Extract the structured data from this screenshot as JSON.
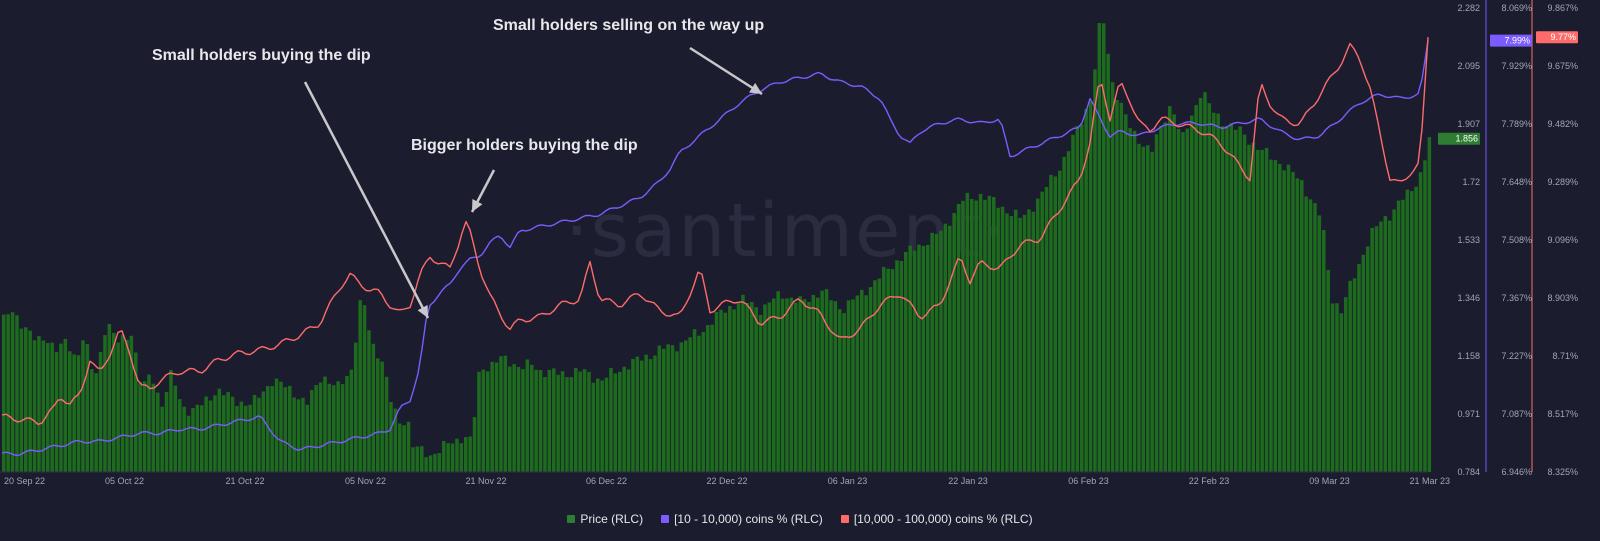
{
  "chart_data": {
    "type": "line",
    "watermark": "·santiment·",
    "annotations": [
      {
        "text": "Small holders buying the dip"
      },
      {
        "text": "Bigger holders buying the dip"
      },
      {
        "text": "Small holders selling on the way up"
      }
    ],
    "x_ticks": [
      "20 Sep 22",
      "05 Oct 22",
      "21 Oct 22",
      "05 Nov 22",
      "21 Nov 22",
      "06 Dec 22",
      "22 Dec 22",
      "06 Jan 23",
      "22 Jan 23",
      "06 Feb 23",
      "22 Feb 23",
      "09 Mar 23",
      "21 Mar 23"
    ],
    "axes": {
      "price": {
        "ticks": [
          "2.282",
          "2.095",
          "1.907",
          "1.72",
          "1.533",
          "1.346",
          "1.158",
          "0.971",
          "0.784"
        ],
        "range": [
          0.784,
          2.282
        ],
        "current_label": "1.856",
        "color": "#2f7d32"
      },
      "small": {
        "ticks": [
          "8.069%",
          "7.929%",
          "7.789%",
          "7.648%",
          "7.508%",
          "7.367%",
          "7.227%",
          "7.087%",
          "6.946%"
        ],
        "range": [
          6.946,
          8.069
        ],
        "current_label": "7.99%",
        "color": "#7a5cff"
      },
      "big": {
        "ticks": [
          "9.867%",
          "9.675%",
          "9.482%",
          "9.289%",
          "9.096%",
          "8.903%",
          "8.71%",
          "8.517%",
          "8.325%"
        ],
        "range": [
          8.325,
          9.867
        ],
        "current_label": "9.77%",
        "color": "#ff6b6b"
      }
    },
    "series": [
      {
        "name": "Price (RLC)",
        "color": "#1d6b1d",
        "anchors": [
          [
            0,
            1.27
          ],
          [
            10,
            1.3
          ],
          [
            25,
            1.25
          ],
          [
            35,
            1.2
          ],
          [
            45,
            1.22
          ],
          [
            55,
            1.18
          ],
          [
            65,
            1.2
          ],
          [
            75,
            1.15
          ],
          [
            83,
            1.24
          ],
          [
            88,
            1.12
          ],
          [
            95,
            1.1
          ],
          [
            105,
            1.28
          ],
          [
            115,
            1.2
          ],
          [
            125,
            1.22
          ],
          [
            130,
            1.24
          ],
          [
            140,
            1.05
          ],
          [
            150,
            1.1
          ],
          [
            160,
            1.0
          ],
          [
            170,
            1.1
          ],
          [
            180,
            1.0
          ],
          [
            190,
            0.98
          ],
          [
            200,
            1.0
          ],
          [
            215,
            1.05
          ],
          [
            230,
            1.02
          ],
          [
            250,
            1.0
          ],
          [
            270,
            1.08
          ],
          [
            290,
            1.05
          ],
          [
            305,
            1.0
          ],
          [
            320,
            1.1
          ],
          [
            335,
            1.05
          ],
          [
            350,
            1.12
          ],
          [
            360,
            1.36
          ],
          [
            370,
            1.2
          ],
          [
            380,
            1.15
          ],
          [
            390,
            1.0
          ],
          [
            400,
            0.93
          ],
          [
            405,
            0.98
          ],
          [
            410,
            0.87
          ],
          [
            420,
            0.85
          ],
          [
            430,
            0.84
          ],
          [
            440,
            0.86
          ],
          [
            450,
            0.88
          ],
          [
            462,
            0.9
          ],
          [
            470,
            0.88
          ],
          [
            478,
            1.12
          ],
          [
            490,
            1.13
          ],
          [
            500,
            1.15
          ],
          [
            510,
            1.14
          ],
          [
            520,
            1.12
          ],
          [
            530,
            1.13
          ],
          [
            540,
            1.11
          ],
          [
            560,
            1.1
          ],
          [
            580,
            1.11
          ],
          [
            600,
            1.08
          ],
          [
            620,
            1.12
          ],
          [
            640,
            1.15
          ],
          [
            660,
            1.18
          ],
          [
            680,
            1.2
          ],
          [
            700,
            1.24
          ],
          [
            720,
            1.3
          ],
          [
            740,
            1.34
          ],
          [
            760,
            1.31
          ],
          [
            780,
            1.36
          ],
          [
            800,
            1.33
          ],
          [
            820,
            1.37
          ],
          [
            840,
            1.31
          ],
          [
            860,
            1.36
          ],
          [
            880,
            1.42
          ],
          [
            900,
            1.48
          ],
          [
            920,
            1.52
          ],
          [
            940,
            1.56
          ],
          [
            960,
            1.66
          ],
          [
            980,
            1.68
          ],
          [
            1000,
            1.64
          ],
          [
            1020,
            1.6
          ],
          [
            1040,
            1.68
          ],
          [
            1060,
            1.78
          ],
          [
            1080,
            1.92
          ],
          [
            1090,
            2.0
          ],
          [
            1100,
            2.28
          ],
          [
            1110,
            2.05
          ],
          [
            1130,
            1.88
          ],
          [
            1150,
            1.82
          ],
          [
            1170,
            1.98
          ],
          [
            1180,
            1.85
          ],
          [
            1200,
            2.02
          ],
          [
            1210,
            1.95
          ],
          [
            1220,
            1.92
          ],
          [
            1240,
            1.88
          ],
          [
            1260,
            1.82
          ],
          [
            1280,
            1.78
          ],
          [
            1300,
            1.72
          ],
          [
            1320,
            1.6
          ],
          [
            1330,
            1.35
          ],
          [
            1340,
            1.3
          ],
          [
            1350,
            1.4
          ],
          [
            1360,
            1.48
          ],
          [
            1370,
            1.55
          ],
          [
            1380,
            1.6
          ],
          [
            1390,
            1.62
          ],
          [
            1400,
            1.66
          ],
          [
            1410,
            1.7
          ],
          [
            1420,
            1.75
          ],
          [
            1428,
            1.86
          ]
        ]
      },
      {
        "name": "[10 - 10,000) coins % (RLC)",
        "color": "#7a5cff",
        "anchors": [
          [
            0,
            6.99
          ],
          [
            20,
            6.99
          ],
          [
            40,
            7.0
          ],
          [
            60,
            7.01
          ],
          [
            80,
            7.02
          ],
          [
            100,
            7.02
          ],
          [
            120,
            7.03
          ],
          [
            140,
            7.04
          ],
          [
            160,
            7.04
          ],
          [
            180,
            7.05
          ],
          [
            200,
            7.05
          ],
          [
            220,
            7.06
          ],
          [
            240,
            7.07
          ],
          [
            260,
            7.08
          ],
          [
            270,
            7.05
          ],
          [
            280,
            7.02
          ],
          [
            300,
            7.0
          ],
          [
            320,
            7.01
          ],
          [
            340,
            7.02
          ],
          [
            360,
            7.03
          ],
          [
            380,
            7.04
          ],
          [
            390,
            7.05
          ],
          [
            400,
            7.1
          ],
          [
            410,
            7.12
          ],
          [
            420,
            7.2
          ],
          [
            425,
            7.3
          ],
          [
            430,
            7.35
          ],
          [
            440,
            7.38
          ],
          [
            450,
            7.4
          ],
          [
            460,
            7.44
          ],
          [
            470,
            7.46
          ],
          [
            480,
            7.47
          ],
          [
            490,
            7.5
          ],
          [
            500,
            7.52
          ],
          [
            510,
            7.49
          ],
          [
            520,
            7.53
          ],
          [
            540,
            7.54
          ],
          [
            560,
            7.55
          ],
          [
            580,
            7.56
          ],
          [
            600,
            7.57
          ],
          [
            620,
            7.59
          ],
          [
            640,
            7.61
          ],
          [
            660,
            7.65
          ],
          [
            670,
            7.68
          ],
          [
            680,
            7.72
          ],
          [
            700,
            7.76
          ],
          [
            720,
            7.8
          ],
          [
            740,
            7.84
          ],
          [
            760,
            7.87
          ],
          [
            780,
            7.89
          ],
          [
            800,
            7.9
          ],
          [
            820,
            7.91
          ],
          [
            840,
            7.89
          ],
          [
            860,
            7.88
          ],
          [
            880,
            7.85
          ],
          [
            890,
            7.8
          ],
          [
            900,
            7.76
          ],
          [
            910,
            7.74
          ],
          [
            920,
            7.77
          ],
          [
            940,
            7.79
          ],
          [
            960,
            7.8
          ],
          [
            980,
            7.79
          ],
          [
            1000,
            7.8
          ],
          [
            1010,
            7.71
          ],
          [
            1020,
            7.72
          ],
          [
            1040,
            7.74
          ],
          [
            1060,
            7.76
          ],
          [
            1080,
            7.78
          ],
          [
            1090,
            7.85
          ],
          [
            1100,
            7.8
          ],
          [
            1110,
            7.76
          ],
          [
            1120,
            7.77
          ],
          [
            1140,
            7.76
          ],
          [
            1160,
            7.78
          ],
          [
            1180,
            7.79
          ],
          [
            1200,
            7.79
          ],
          [
            1220,
            7.78
          ],
          [
            1240,
            7.79
          ],
          [
            1260,
            7.8
          ],
          [
            1280,
            7.77
          ],
          [
            1300,
            7.75
          ],
          [
            1320,
            7.76
          ],
          [
            1340,
            7.8
          ],
          [
            1360,
            7.84
          ],
          [
            1380,
            7.86
          ],
          [
            1400,
            7.85
          ],
          [
            1420,
            7.86
          ],
          [
            1428,
            7.99
          ]
        ]
      },
      {
        "name": "[10,000 - 100,000) coins % (RLC)",
        "color": "#ff6b6b",
        "anchors": [
          [
            0,
            8.51
          ],
          [
            20,
            8.5
          ],
          [
            40,
            8.49
          ],
          [
            55,
            8.54
          ],
          [
            60,
            8.58
          ],
          [
            70,
            8.55
          ],
          [
            80,
            8.58
          ],
          [
            90,
            8.7
          ],
          [
            100,
            8.65
          ],
          [
            110,
            8.72
          ],
          [
            120,
            8.8
          ],
          [
            130,
            8.72
          ],
          [
            140,
            8.61
          ],
          [
            150,
            8.6
          ],
          [
            160,
            8.63
          ],
          [
            180,
            8.66
          ],
          [
            200,
            8.66
          ],
          [
            220,
            8.7
          ],
          [
            240,
            8.72
          ],
          [
            260,
            8.73
          ],
          [
            280,
            8.75
          ],
          [
            300,
            8.78
          ],
          [
            320,
            8.82
          ],
          [
            330,
            8.88
          ],
          [
            340,
            8.94
          ],
          [
            350,
            8.98
          ],
          [
            360,
            8.95
          ],
          [
            370,
            8.93
          ],
          [
            380,
            8.92
          ],
          [
            390,
            8.88
          ],
          [
            400,
            8.85
          ],
          [
            410,
            8.88
          ],
          [
            420,
            8.98
          ],
          [
            430,
            9.04
          ],
          [
            440,
            9.02
          ],
          [
            450,
            9.0
          ],
          [
            460,
            9.1
          ],
          [
            465,
            9.16
          ],
          [
            470,
            9.12
          ],
          [
            480,
            9.0
          ],
          [
            490,
            8.91
          ],
          [
            500,
            8.85
          ],
          [
            510,
            8.8
          ],
          [
            520,
            8.83
          ],
          [
            540,
            8.84
          ],
          [
            560,
            8.88
          ],
          [
            580,
            8.9
          ],
          [
            590,
            9.02
          ],
          [
            600,
            8.9
          ],
          [
            620,
            8.88
          ],
          [
            640,
            8.92
          ],
          [
            660,
            8.86
          ],
          [
            680,
            8.84
          ],
          [
            700,
            9.0
          ],
          [
            710,
            8.86
          ],
          [
            720,
            8.88
          ],
          [
            740,
            8.9
          ],
          [
            760,
            8.82
          ],
          [
            780,
            8.84
          ],
          [
            800,
            8.9
          ],
          [
            820,
            8.85
          ],
          [
            840,
            8.76
          ],
          [
            860,
            8.8
          ],
          [
            880,
            8.88
          ],
          [
            900,
            8.92
          ],
          [
            920,
            8.84
          ],
          [
            940,
            8.88
          ],
          [
            960,
            9.04
          ],
          [
            970,
            8.96
          ],
          [
            980,
            9.02
          ],
          [
            1000,
            9.0
          ],
          [
            1020,
            9.08
          ],
          [
            1040,
            9.1
          ],
          [
            1060,
            9.2
          ],
          [
            1080,
            9.3
          ],
          [
            1090,
            9.42
          ],
          [
            1100,
            9.64
          ],
          [
            1110,
            9.5
          ],
          [
            1120,
            9.62
          ],
          [
            1130,
            9.56
          ],
          [
            1140,
            9.48
          ],
          [
            1150,
            9.46
          ],
          [
            1160,
            9.5
          ],
          [
            1180,
            9.48
          ],
          [
            1200,
            9.46
          ],
          [
            1220,
            9.42
          ],
          [
            1240,
            9.34
          ],
          [
            1250,
            9.3
          ],
          [
            1260,
            9.62
          ],
          [
            1270,
            9.55
          ],
          [
            1280,
            9.5
          ],
          [
            1300,
            9.48
          ],
          [
            1320,
            9.58
          ],
          [
            1340,
            9.68
          ],
          [
            1350,
            9.74
          ],
          [
            1360,
            9.7
          ],
          [
            1370,
            9.6
          ],
          [
            1380,
            9.45
          ],
          [
            1390,
            9.3
          ],
          [
            1400,
            9.28
          ],
          [
            1410,
            9.32
          ],
          [
            1420,
            9.35
          ],
          [
            1428,
            9.77
          ]
        ]
      }
    ],
    "legend": [
      "Price (RLC)",
      "[10 - 10,000) coins % (RLC)",
      "[10,000 - 100,000) coins % (RLC)"
    ],
    "legend_position": "bottom",
    "grid": false
  }
}
